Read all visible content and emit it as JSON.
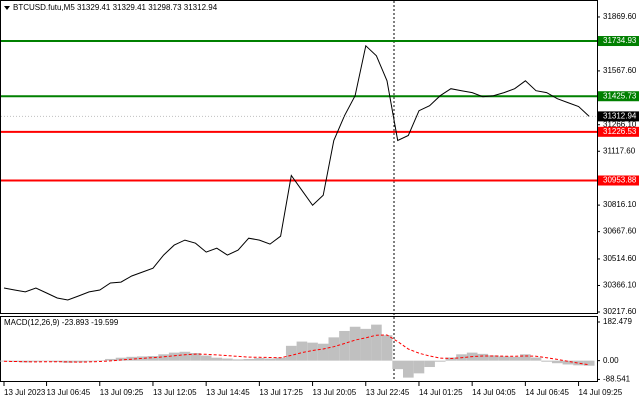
{
  "chart_data": [
    {
      "type": "price-line",
      "title": "BTCUSD.futu,M5 31329.41 31329.41 31298.73 31312.94",
      "categories": [
        "13 Jul 2023",
        null,
        null,
        null,
        "13 Jul 06:45",
        null,
        null,
        null,
        null,
        "13 Jul 09:25",
        null,
        null,
        null,
        null,
        "13 Jul 12:05",
        null,
        null,
        null,
        null,
        "13 Jul 14:45",
        null,
        null,
        null,
        null,
        "13 Jul 17:25",
        null,
        null,
        null,
        null,
        "13 Jul 20:05",
        null,
        null,
        null,
        null,
        "13 Jul 22:45",
        null,
        null,
        null,
        null,
        "14 Jul 01:25",
        null,
        null,
        null,
        null,
        "14 Jul 04:05",
        null,
        null,
        null,
        null,
        "14 Jul 06:45",
        null,
        null,
        null,
        null,
        "14 Jul 09:25",
        null
      ],
      "values": [
        30352,
        30341,
        30330,
        30352,
        30324,
        30296,
        30285,
        30307,
        30330,
        30341,
        30380,
        30385,
        30419,
        30441,
        30463,
        30536,
        30592,
        30620,
        30603,
        30553,
        30575,
        30536,
        30564,
        30631,
        30620,
        30598,
        30642,
        30982,
        30899,
        30815,
        30871,
        31178,
        31317,
        31429,
        31708,
        31652,
        31512,
        31178,
        31206,
        31345,
        31373,
        31429,
        31468,
        31457,
        31446,
        31423,
        31429,
        31446,
        31468,
        31512,
        31457,
        31446,
        31412,
        31390,
        31368,
        31312.94
      ],
      "color": "#000000",
      "levels": [
        {
          "value": 31734.93,
          "color": "#008000"
        },
        {
          "value": 31425.73,
          "color": "#008000"
        },
        {
          "value": 31226.53,
          "color": "#ff0000"
        },
        {
          "value": 30953.88,
          "color": "#ff0000"
        }
      ],
      "last_price": 31312.94,
      "ylim": [
        30212,
        31959
      ],
      "yticks": [
        {
          "value": 31869.6,
          "label": "31869.60"
        },
        {
          "value": 31567.6,
          "label": "31567.60"
        },
        {
          "value": 31266.1,
          "label": "31266.10"
        },
        {
          "value": 31117.6,
          "label": "31117.60"
        },
        {
          "value": 30816.1,
          "label": "30816.10"
        },
        {
          "value": 30667.6,
          "label": "30667.60"
        },
        {
          "value": 30514.6,
          "label": "30514.60"
        },
        {
          "value": 30366.1,
          "label": "30366.10"
        },
        {
          "value": 30217.6,
          "label": "30217.60"
        }
      ]
    },
    {
      "type": "macd",
      "title": "MACD(12,26,9) -23.893 -19.599",
      "values": [
        -4,
        -6,
        -8,
        -5,
        -3,
        -6,
        -10,
        -8,
        -4,
        2,
        8,
        14,
        18,
        20,
        22,
        30,
        38,
        42,
        36,
        24,
        14,
        10,
        6,
        8,
        12,
        10,
        14,
        70,
        90,
        85,
        80,
        110,
        140,
        160,
        150,
        170,
        120,
        -40,
        -80,
        -60,
        -30,
        -5,
        15,
        30,
        38,
        32,
        25,
        20,
        18,
        30,
        15,
        -5,
        -12,
        -18,
        -22,
        -23.893
      ],
      "signal": [
        -3,
        -4,
        -5,
        -6,
        -5,
        -5,
        -6,
        -7,
        -6,
        -4,
        -1,
        3,
        7,
        11,
        14,
        18,
        23,
        28,
        31,
        30,
        27,
        24,
        20,
        17,
        16,
        15,
        14,
        25,
        38,
        48,
        55,
        66,
        81,
        97,
        108,
        120,
        121,
        90,
        55,
        35,
        22,
        12,
        10,
        14,
        19,
        22,
        22,
        21,
        21,
        22,
        21,
        14,
        6,
        -3,
        -12,
        -19.599
      ],
      "color": "#c0c0c0",
      "signal_color": "#ff0000",
      "ylim": [
        -96,
        206
      ],
      "yticks": [
        182.479,
        {
          "value": 0,
          "label": "0.00"
        },
        -88.541
      ]
    }
  ]
}
